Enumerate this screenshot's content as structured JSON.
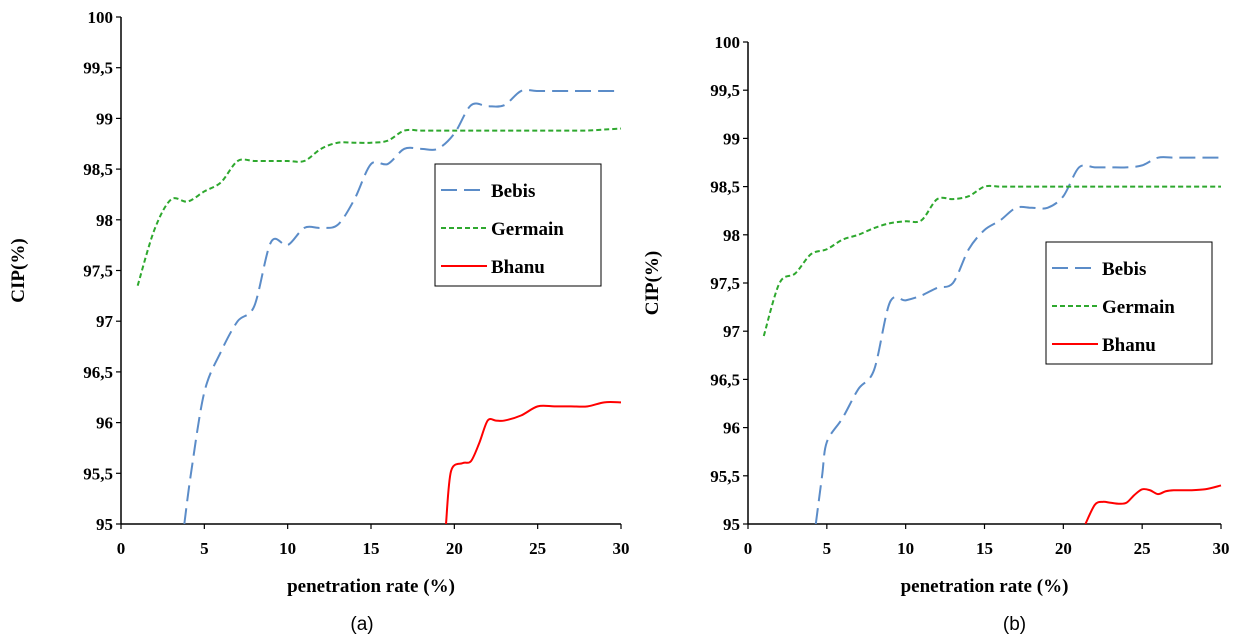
{
  "chart_data": [
    {
      "type": "line",
      "caption": "(a)",
      "xlabel": "penetration rate (%)",
      "ylabel": "CIP(%)",
      "xlim": [
        0,
        30
      ],
      "ylim": [
        95,
        100
      ],
      "xticks": [
        "0",
        "5",
        "10",
        "15",
        "20",
        "25",
        "30"
      ],
      "yticks": [
        "95",
        "95,5",
        "96",
        "96,5",
        "97",
        "97,5",
        "98",
        "98,5",
        "99",
        "99,5",
        "100"
      ],
      "grid": false,
      "legend_position": "right",
      "series": [
        {
          "name": "Bebis",
          "color": "#5b8cc8",
          "dash": "dashed",
          "x": [
            3.8,
            4.2,
            5,
            6,
            7,
            8,
            9,
            10,
            11,
            12,
            13,
            14,
            15,
            16,
            17,
            18,
            19,
            20,
            21,
            22,
            23,
            24,
            25,
            26,
            27,
            28,
            29,
            30
          ],
          "y": [
            95.0,
            95.5,
            96.3,
            96.7,
            97.0,
            97.15,
            97.78,
            97.75,
            97.92,
            97.92,
            97.95,
            98.2,
            98.55,
            98.55,
            98.7,
            98.7,
            98.7,
            98.85,
            99.13,
            99.12,
            99.13,
            99.27,
            99.27,
            99.27,
            99.27,
            99.27,
            99.27,
            99.27
          ]
        },
        {
          "name": "Germain",
          "color": "#2ea82e",
          "dash": "dotted",
          "x": [
            1,
            2,
            3,
            4,
            5,
            6,
            7,
            8,
            9,
            10,
            11,
            12,
            13,
            14,
            15,
            16,
            17,
            18,
            19,
            20,
            21,
            22,
            23,
            24,
            25,
            26,
            27,
            28,
            29,
            30
          ],
          "y": [
            97.35,
            97.9,
            98.2,
            98.18,
            98.28,
            98.37,
            98.58,
            98.58,
            98.58,
            98.58,
            98.58,
            98.7,
            98.76,
            98.76,
            98.76,
            98.78,
            98.88,
            98.88,
            98.88,
            98.88,
            98.88,
            98.88,
            98.88,
            98.88,
            98.88,
            98.88,
            98.88,
            98.88,
            98.89,
            98.9
          ]
        },
        {
          "name": "Bhanu",
          "color": "#ff0000",
          "dash": "solid",
          "x": [
            19.5,
            19.8,
            20.5,
            21,
            21.5,
            22,
            22.5,
            23,
            24,
            25,
            26,
            27,
            28,
            29,
            30
          ],
          "y": [
            95.0,
            95.52,
            95.6,
            95.62,
            95.8,
            96.02,
            96.02,
            96.02,
            96.07,
            96.16,
            96.16,
            96.16,
            96.16,
            96.2,
            96.2
          ]
        }
      ]
    },
    {
      "type": "line",
      "caption": "(b)",
      "xlabel": "penetration rate (%)",
      "ylabel": "CIP(%)",
      "xlim": [
        0,
        30
      ],
      "ylim": [
        95,
        100
      ],
      "xticks": [
        "0",
        "5",
        "10",
        "15",
        "20",
        "25",
        "30"
      ],
      "yticks": [
        "95",
        "95,5",
        "96",
        "96,5",
        "97",
        "97,5",
        "98",
        "98,5",
        "99",
        "99,5",
        "100"
      ],
      "grid": false,
      "legend_position": "right",
      "series": [
        {
          "name": "Bebis",
          "color": "#5b8cc8",
          "dash": "dashed",
          "x": [
            4.3,
            4.7,
            5,
            6,
            7,
            8,
            9,
            10,
            11,
            12,
            13,
            14,
            15,
            16,
            17,
            18,
            19,
            20,
            21,
            22,
            23,
            24,
            25,
            26,
            27,
            28,
            29,
            30
          ],
          "y": [
            95.0,
            95.5,
            95.85,
            96.1,
            96.4,
            96.6,
            97.3,
            97.32,
            97.37,
            97.45,
            97.5,
            97.85,
            98.05,
            98.15,
            98.28,
            98.28,
            98.28,
            98.4,
            98.7,
            98.7,
            98.7,
            98.7,
            98.72,
            98.8,
            98.8,
            98.8,
            98.8,
            98.8
          ]
        },
        {
          "name": "Germain",
          "color": "#2ea82e",
          "dash": "dotted",
          "x": [
            1,
            2,
            3,
            4,
            5,
            6,
            7,
            8,
            9,
            10,
            11,
            12,
            13,
            14,
            15,
            16,
            17,
            18,
            19,
            20,
            21,
            22,
            23,
            24,
            25,
            26,
            27,
            28,
            29,
            30
          ],
          "y": [
            96.95,
            97.5,
            97.6,
            97.8,
            97.85,
            97.95,
            98.0,
            98.07,
            98.12,
            98.14,
            98.15,
            98.37,
            98.37,
            98.4,
            98.5,
            98.5,
            98.5,
            98.5,
            98.5,
            98.5,
            98.5,
            98.5,
            98.5,
            98.5,
            98.5,
            98.5,
            98.5,
            98.5,
            98.5,
            98.5
          ]
        },
        {
          "name": "Bhanu",
          "color": "#ff0000",
          "dash": "solid",
          "x": [
            21.4,
            22,
            22.5,
            23,
            23.5,
            24,
            24.5,
            25,
            25.5,
            26,
            26.5,
            27,
            28,
            29,
            30
          ],
          "y": [
            95.0,
            95.2,
            95.23,
            95.22,
            95.21,
            95.22,
            95.3,
            95.36,
            95.35,
            95.31,
            95.34,
            95.35,
            95.35,
            95.36,
            95.4
          ]
        }
      ]
    }
  ]
}
